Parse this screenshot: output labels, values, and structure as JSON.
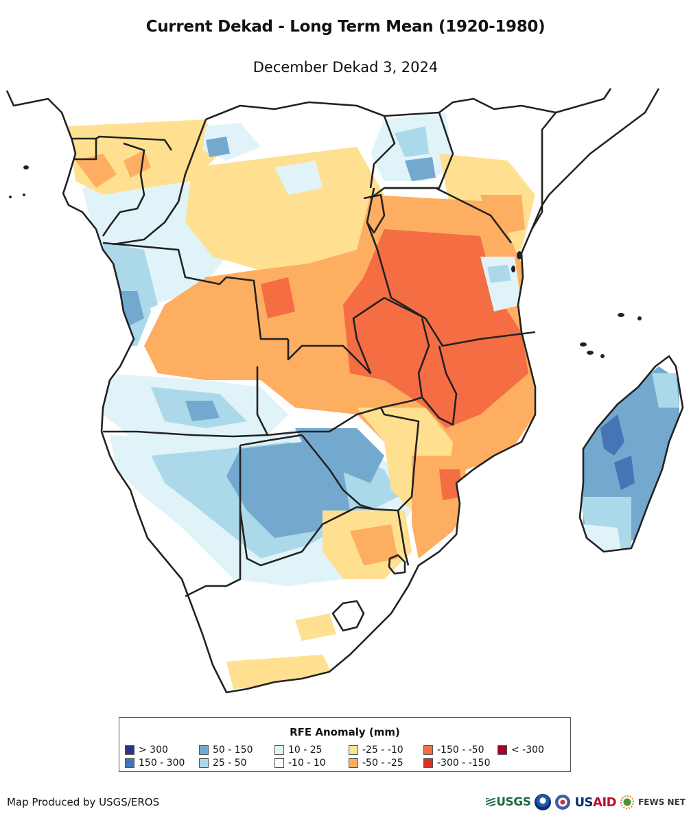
{
  "header": {
    "title": "Current Dekad - Long Term Mean (1920-1980)",
    "subtitle": "December Dekad 3, 2024"
  },
  "map": {
    "region": "Southern and Eastern Africa",
    "variable": "Rainfall Estimate (RFE) anomaly",
    "background_color": "#ffffff",
    "border_color": "#222222",
    "regions": [
      {
        "name": "central-tanzania-zambia-malawi-mozambique-dry",
        "class": "-150 - -50"
      },
      {
        "name": "northern-zambia-angola-dry",
        "class": "-50 - -25"
      },
      {
        "name": "botswana-wet",
        "class": "50 - 150"
      },
      {
        "name": "madagascar-wet",
        "class": "50 - 150"
      },
      {
        "name": "namibia-south-angola-wet",
        "class": "25 - 50"
      },
      {
        "name": "south-africa-mostly-normal",
        "class": "-10 - 10"
      },
      {
        "name": "gabon-cameroon-dry",
        "class": "-25 - -10"
      },
      {
        "name": "uganda-wet",
        "class": "10 - 25"
      },
      {
        "name": "kenya-east-dry",
        "class": "-50 - -25"
      }
    ]
  },
  "legend": {
    "title": "RFE Anomaly (mm)",
    "items": [
      {
        "label": "> 300",
        "color": "#2f3192"
      },
      {
        "label": "150 - 300",
        "color": "#4575b4"
      },
      {
        "label": "50 - 150",
        "color": "#74a9cf"
      },
      {
        "label": "25 - 50",
        "color": "#abd9e9"
      },
      {
        "label": "10 - 25",
        "color": "#e0f3f8"
      },
      {
        "label": "-10 - 10",
        "color": "#ffffff"
      },
      {
        "label": "-25 - -10",
        "color": "#fee090"
      },
      {
        "label": "-50 - -25",
        "color": "#fdae61"
      },
      {
        "label": "-150 - -50",
        "color": "#f46d43"
      },
      {
        "label": "-300 - -150",
        "color": "#d73027"
      },
      {
        "label": "< -300",
        "color": "#a50026"
      }
    ]
  },
  "footer": {
    "credit": "Map Produced by USGS/EROS",
    "logos": {
      "usgs": "USGS",
      "usaid_us": "US",
      "usaid_aid": "AID",
      "fews": "FEWS NET"
    }
  }
}
